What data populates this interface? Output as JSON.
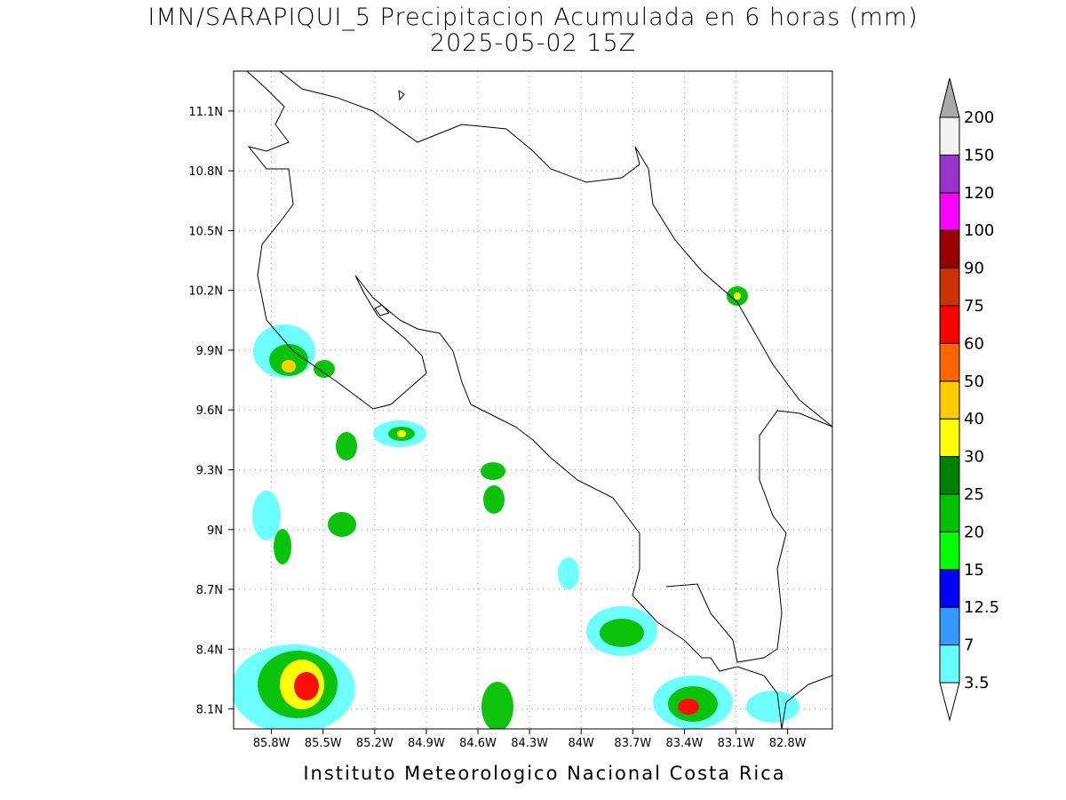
{
  "map": {
    "title": "IMN/SARAPIQUI_5 Precipitacion Acumulada en 6 horas (mm)",
    "subtitle": "2025-05-02 15Z",
    "footer": "Instituto Meteorologico Nacional Costa Rica",
    "xlim": [
      -86.02,
      -82.54
    ],
    "ylim": [
      8.0,
      11.3
    ],
    "xticks": [
      {
        "value": -85.8,
        "label": "85.8W"
      },
      {
        "value": -85.5,
        "label": "85.5W"
      },
      {
        "value": -85.2,
        "label": "85.2W"
      },
      {
        "value": -84.9,
        "label": "84.9W"
      },
      {
        "value": -84.6,
        "label": "84.6W"
      },
      {
        "value": -84.3,
        "label": "84.3W"
      },
      {
        "value": -84.0,
        "label": "84W"
      },
      {
        "value": -83.7,
        "label": "83.7W"
      },
      {
        "value": -83.4,
        "label": "83.4W"
      },
      {
        "value": -83.1,
        "label": "83.1W"
      },
      {
        "value": -82.8,
        "label": "82.8W"
      }
    ],
    "yticks": [
      {
        "value": 8.1,
        "label": "8.1N"
      },
      {
        "value": 8.4,
        "label": "8.4N"
      },
      {
        "value": 8.7,
        "label": "8.7N"
      },
      {
        "value": 9.0,
        "label": "9N"
      },
      {
        "value": 9.3,
        "label": "9.3N"
      },
      {
        "value": 9.6,
        "label": "9.6N"
      },
      {
        "value": 9.9,
        "label": "9.9N"
      },
      {
        "value": 10.2,
        "label": "10.2N"
      },
      {
        "value": 10.5,
        "label": "10.5N"
      },
      {
        "value": 10.8,
        "label": "10.8N"
      },
      {
        "value": 11.1,
        "label": "11.1N"
      }
    ],
    "grid": true,
    "colorbar": {
      "levels": [
        3.5,
        7,
        12.5,
        15,
        20,
        25,
        30,
        40,
        50,
        60,
        75,
        90,
        100,
        120,
        150,
        200
      ],
      "colors": [
        "#66ffff",
        "#3399ff",
        "#0000ff",
        "#00ff00",
        "#00c000",
        "#008000",
        "#ffff00",
        "#ffcc00",
        "#ff6600",
        "#ff0000",
        "#cc3300",
        "#990000",
        "#ff00ff",
        "#9933cc",
        "#f2f2f2"
      ],
      "under_color": "#ffffff",
      "over_color": "#aaaaaa"
    }
  }
}
